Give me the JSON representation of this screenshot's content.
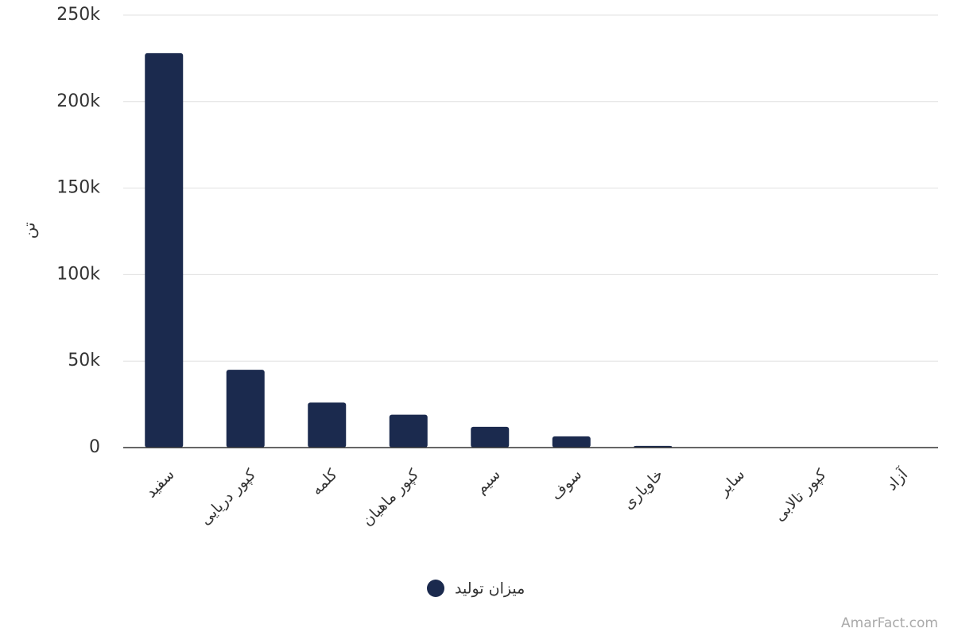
{
  "chart_data": {
    "type": "bar",
    "categories": [
      "سفید",
      "کپور دریایی",
      "کلمه",
      "کپور ماهیان",
      "سیم",
      "سوف",
      "خاویاری",
      "سایر",
      "کپور تالابی",
      "آزاد"
    ],
    "series": [
      {
        "name": "میزان تولید",
        "color": "#1b2a4e",
        "values": [
          228000,
          45000,
          26000,
          19000,
          12000,
          6500,
          1000,
          200,
          100,
          50
        ]
      }
    ],
    "y_label": "تن",
    "ylim": [
      0,
      250000
    ],
    "yticks": [
      0,
      {
        "value": 50000,
        "label": "50k"
      },
      {
        "value": 100000,
        "label": "100k"
      },
      {
        "value": 150000,
        "label": "150k"
      },
      {
        "value": 200000,
        "label": "200k"
      },
      {
        "value": 250000,
        "label": "250k"
      }
    ],
    "grid": true,
    "legend": "bottom",
    "watermark": "AmarFact.com"
  }
}
